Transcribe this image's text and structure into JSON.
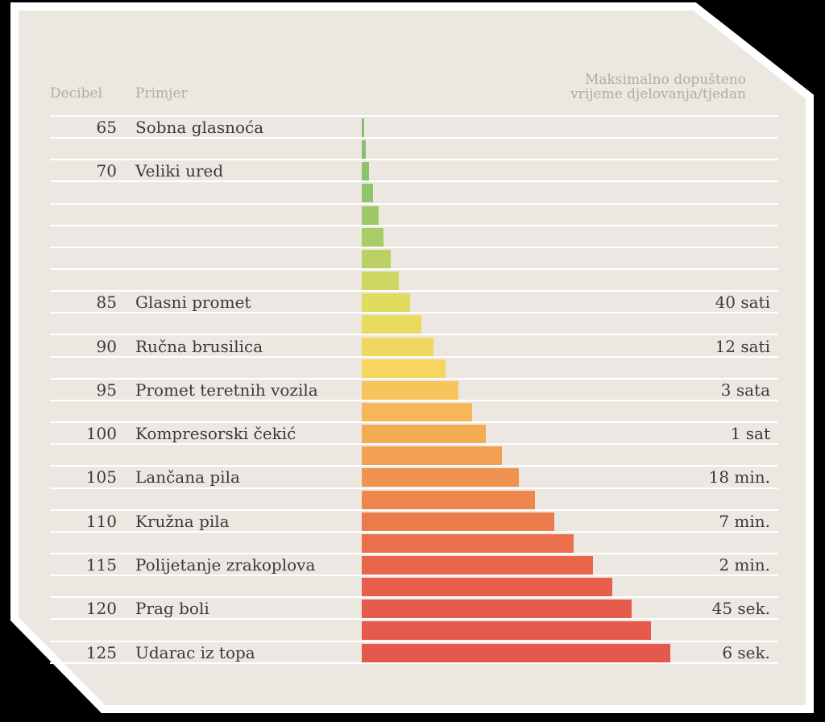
{
  "headers": {
    "decibel": "Decibel",
    "example": "Primjer",
    "limit_line1": "Maksimalno dopušteno",
    "limit_line2": "vrijeme djelovanja/tjedan"
  },
  "colors": {
    "background": "#000000",
    "card": "#ece8e1",
    "card_border": "#ffffff",
    "text": "#3a3a3a",
    "header_text": "#b3aba1"
  },
  "chart_data": {
    "type": "bar",
    "orientation": "horizontal",
    "x": [
      65,
      67.5,
      70,
      72.5,
      75,
      77.5,
      80,
      82.5,
      85,
      87.5,
      90,
      92.5,
      95,
      97.5,
      100,
      102.5,
      105,
      107.5,
      110,
      112.5,
      115,
      117.5,
      120,
      122.5,
      125
    ],
    "db_labels": [
      "65",
      "",
      "70",
      "",
      "",
      "",
      "",
      "",
      "85",
      "",
      "90",
      "",
      "95",
      "",
      "100",
      "",
      "105",
      "",
      "110",
      "",
      "115",
      "",
      "120",
      "",
      "125"
    ],
    "examples": [
      "Sobna glasnoća",
      "",
      "Veliki ured",
      "",
      "",
      "",
      "",
      "",
      "Glasni promet",
      "",
      "Ručna brusilica",
      "",
      "Promet teretnih vozila",
      "",
      "Kompresorski čekić",
      "",
      "Lančana pila",
      "",
      "Kružna pila",
      "",
      "Polijetanje zrakoplova",
      "",
      "Prag boli",
      "",
      "Udarac iz topa"
    ],
    "max_time": [
      "",
      "",
      "",
      "",
      "",
      "",
      "",
      "",
      "40 sati",
      "",
      "12 sati",
      "",
      "3 sata",
      "",
      "1 sat",
      "",
      "18 min.",
      "",
      "7 min.",
      "",
      "2 min.",
      "",
      "45 sek.",
      "",
      "6 sek."
    ],
    "values": [
      0.8,
      1.5,
      2.5,
      4,
      6,
      8,
      10.5,
      13.5,
      17.5,
      21.5,
      26,
      30.5,
      35,
      40,
      45,
      51,
      57,
      63,
      70,
      77,
      84,
      91,
      98,
      105,
      112
    ],
    "colors": [
      "#86c06d",
      "#86c06d",
      "#8bc26c",
      "#90c46a",
      "#9cc868",
      "#a8cc66",
      "#bcd164",
      "#cfd762",
      "#dfdc60",
      "#e8dc5e",
      "#f0d75e",
      "#f7d560",
      "#f8c45c",
      "#f6b856",
      "#f4ac54",
      "#f2a052",
      "#f09350",
      "#ee874e",
      "#ec7b4c",
      "#ea704c",
      "#e8654c",
      "#e75f4c",
      "#e65c4c",
      "#e55a4c",
      "#e5594c"
    ],
    "xlim": [
      0,
      112
    ]
  }
}
